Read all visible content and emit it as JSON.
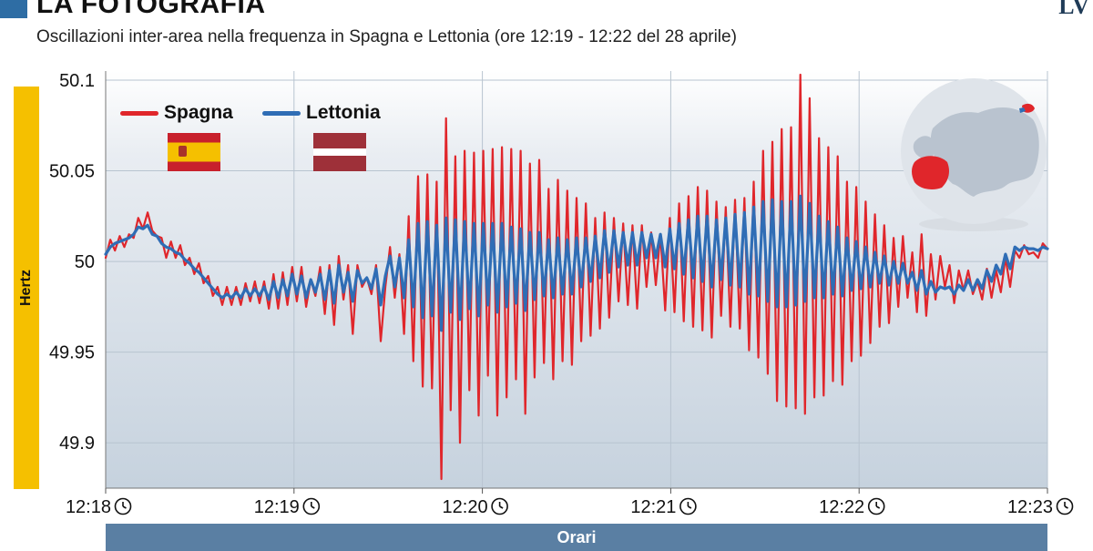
{
  "header": {
    "headline": "LA FOTOGRAFIA",
    "subtitle": "Oscillazioni inter-area nella frequenza in Spagna e Lettonia (ore 12:19 - 12:22 del 28 aprile)",
    "logo_text": "LV"
  },
  "chart_data": {
    "type": "line",
    "ylabel": "Hertz",
    "xlabel": "Orari",
    "ylim": [
      49.875,
      50.105
    ],
    "yticks": [
      49.9,
      49.95,
      50,
      50.05,
      50.1
    ],
    "ytick_labels": [
      "49.9",
      "49.95",
      "50",
      "50.05",
      "50.1"
    ],
    "xticks": [
      "12:18",
      "12:19",
      "12:20",
      "12:21",
      "12:22",
      "12:23"
    ],
    "grid": true,
    "legend_placement": "top-left",
    "sample_interval_seconds": 2,
    "series": [
      {
        "name": "Spagna",
        "color": "#e0262b",
        "values": [
          50.002,
          50.012,
          50.006,
          50.014,
          50.008,
          50.015,
          50.013,
          50.024,
          50.018,
          50.027,
          50.017,
          50.014,
          50.013,
          50.002,
          50.011,
          50.002,
          50.009,
          49.998,
          50.002,
          49.993,
          49.999,
          49.988,
          49.992,
          49.981,
          49.986,
          49.976,
          49.986,
          49.976,
          49.986,
          49.976,
          49.988,
          49.978,
          49.989,
          49.977,
          49.989,
          49.974,
          49.993,
          49.974,
          49.994,
          49.976,
          49.997,
          49.978,
          49.997,
          49.975,
          49.99,
          49.981,
          49.997,
          49.971,
          49.998,
          49.965,
          50.003,
          49.979,
          49.998,
          49.96,
          49.998,
          49.986,
          49.991,
          49.982,
          49.998,
          49.956,
          49.986,
          50.008,
          49.98,
          50.004,
          49.96,
          50.025,
          49.945,
          50.047,
          49.931,
          50.048,
          49.93,
          50.044,
          49.88,
          50.079,
          49.918,
          50.058,
          49.9,
          50.061,
          49.929,
          50.06,
          49.915,
          50.061,
          49.937,
          50.062,
          49.915,
          50.063,
          49.925,
          50.062,
          49.935,
          50.061,
          49.916,
          50.054,
          49.936,
          50.056,
          49.944,
          50.04,
          49.935,
          50.045,
          49.945,
          50.039,
          49.943,
          50.035,
          49.956,
          50.032,
          49.959,
          50.024,
          49.963,
          50.027,
          49.969,
          50.024,
          49.978,
          50.021,
          49.976,
          50.02,
          49.974,
          50.02,
          49.986,
          50.016,
          49.987,
          50.015,
          49.973,
          50.024,
          49.972,
          50.032,
          49.967,
          50.036,
          49.964,
          50.041,
          49.962,
          50.039,
          49.958,
          50.033,
          49.97,
          50.03,
          49.964,
          50.034,
          49.963,
          50.035,
          49.951,
          50.044,
          49.947,
          50.061,
          49.938,
          50.066,
          49.923,
          50.073,
          49.92,
          50.074,
          49.919,
          50.103,
          49.916,
          50.09,
          49.925,
          50.068,
          49.926,
          50.063,
          49.934,
          50.058,
          49.932,
          50.044,
          49.945,
          50.041,
          49.948,
          50.033,
          49.955,
          50.026,
          49.964,
          50.02,
          49.966,
          50.013,
          49.975,
          50.014,
          49.98,
          50.005,
          49.972,
          50.015,
          49.97,
          50.004,
          49.979,
          50.003,
          49.986,
          49.998,
          49.977,
          49.995,
          49.984,
          49.995,
          49.982,
          49.989,
          49.979,
          49.996,
          49.98,
          49.995,
          49.983,
          50.002,
          49.986,
          50.006,
          50.002,
          50.009,
          50.004,
          50.005,
          50.002,
          50.01,
          50.007
        ]
      },
      {
        "name": "Lettonia",
        "color": "#2f6db5",
        "values": [
          50.004,
          50.008,
          50.01,
          50.011,
          50.012,
          50.013,
          50.015,
          50.019,
          50.018,
          50.02,
          50.015,
          50.014,
          50.01,
          50.008,
          50.007,
          50.005,
          50.004,
          50.001,
          49.999,
          49.996,
          49.994,
          49.991,
          49.988,
          49.985,
          49.982,
          49.98,
          49.982,
          49.98,
          49.983,
          49.98,
          49.985,
          49.981,
          49.985,
          49.981,
          49.986,
          49.979,
          49.989,
          49.98,
          49.99,
          49.981,
          49.993,
          49.982,
          49.992,
          49.98,
          49.99,
          49.983,
          49.993,
          49.979,
          49.995,
          49.977,
          49.998,
          49.983,
          49.994,
          49.978,
          49.995,
          49.988,
          49.991,
          49.985,
          49.996,
          49.976,
          49.992,
          50.003,
          49.986,
          50.002,
          49.98,
          50.012,
          49.975,
          50.021,
          49.969,
          50.022,
          49.97,
          50.02,
          49.962,
          50.024,
          49.972,
          50.023,
          49.968,
          50.022,
          49.974,
          50.021,
          49.97,
          50.021,
          49.976,
          50.021,
          49.972,
          50.021,
          49.975,
          50.019,
          49.977,
          50.018,
          49.973,
          50.016,
          49.979,
          50.016,
          49.981,
          50.012,
          49.98,
          50.013,
          49.982,
          50.012,
          49.982,
          50.013,
          49.986,
          50.013,
          49.989,
          50.014,
          49.991,
          50.017,
          49.994,
          50.017,
          49.997,
          50.016,
          49.998,
          50.016,
          49.998,
          50.016,
          50.002,
          50.015,
          50.002,
          50.015,
          49.997,
          50.018,
          49.996,
          50.021,
          49.993,
          50.023,
          49.991,
          50.025,
          49.989,
          50.025,
          49.986,
          50.023,
          49.99,
          50.024,
          49.987,
          50.026,
          49.986,
          50.027,
          49.982,
          50.03,
          49.981,
          50.033,
          49.978,
          50.034,
          49.975,
          50.033,
          49.975,
          50.033,
          49.976,
          50.036,
          49.978,
          50.032,
          49.98,
          50.025,
          49.98,
          50.022,
          49.982,
          50.019,
          49.981,
          50.013,
          49.984,
          50.011,
          49.985,
          50.008,
          49.986,
          50.005,
          49.988,
          50.003,
          49.987,
          50.0,
          49.988,
          49.999,
          49.988,
          49.994,
          49.984,
          49.995,
          49.982,
          49.989,
          49.983,
          49.986,
          49.985,
          49.986,
          49.982,
          49.987,
          49.984,
          49.99,
          49.984,
          49.99,
          49.985,
          49.995,
          49.989,
          49.998,
          49.993,
          50.004,
          49.996,
          50.008,
          50.006,
          50.008,
          50.007,
          50.007,
          50.006,
          50.008,
          50.007
        ]
      }
    ]
  },
  "legend": {
    "spagna_label": "Spagna",
    "lettonia_label": "Lettonia"
  },
  "colors": {
    "spagna": "#e0262b",
    "lettonia": "#2f6db5",
    "axis_title_bar": "#f5c000",
    "xaxis_bar": "#5a7fa3"
  },
  "icons": {
    "tick_icon": "clock-icon",
    "inset": "europe-globe-icon",
    "flag_es": "spain-flag-icon",
    "flag_lv": "latvia-flag-icon"
  }
}
